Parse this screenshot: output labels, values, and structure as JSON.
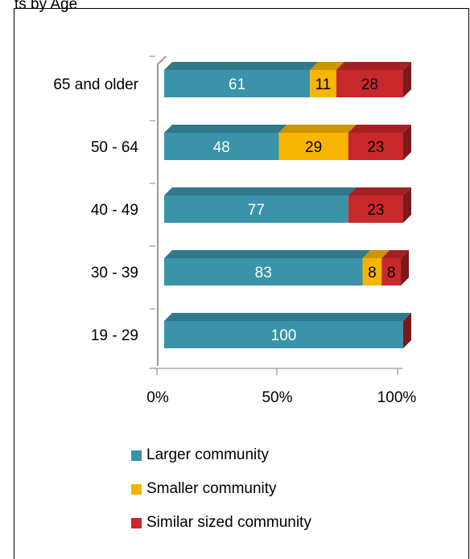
{
  "chart_data": {
    "type": "bar",
    "orientation": "horizontal",
    "stacked": "100%",
    "title": "ts by Age",
    "categories": [
      "65 and older",
      "50 - 64",
      "40 - 49",
      "30 - 39",
      "19 - 29"
    ],
    "series": [
      {
        "name": "Larger community",
        "values": [
          61,
          48,
          77,
          83,
          100
        ],
        "color": "#3a93a8"
      },
      {
        "name": "Smaller community",
        "values": [
          11,
          29,
          0,
          8,
          0
        ],
        "color": "#f7b400"
      },
      {
        "name": "Similar sized community",
        "values": [
          28,
          23,
          23,
          8,
          0
        ],
        "color": "#c8282b"
      }
    ],
    "data_labels": [
      [
        "61",
        "48",
        "77",
        "83",
        "100"
      ],
      [
        "11",
        "29",
        "",
        "8",
        ""
      ],
      [
        "28",
        "23",
        "23",
        "8",
        ""
      ]
    ],
    "x_ticks": [
      "0%",
      "50%",
      "100%"
    ],
    "xlim": [
      0,
      100
    ],
    "legend_position": "bottom",
    "grid": false
  }
}
